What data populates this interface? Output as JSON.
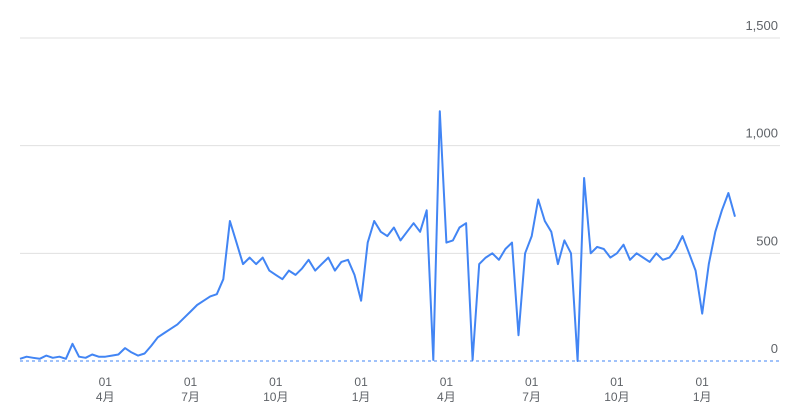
{
  "chart_data": {
    "type": "line",
    "categories": [
      null,
      null,
      null,
      null,
      null,
      null,
      null,
      null,
      null,
      null,
      null,
      null,
      null,
      "01\n4月",
      null,
      null,
      null,
      null,
      null,
      null,
      null,
      null,
      null,
      null,
      null,
      null,
      "01\n7月",
      null,
      null,
      null,
      null,
      null,
      null,
      null,
      null,
      null,
      null,
      null,
      null,
      "01\n10月",
      null,
      null,
      null,
      null,
      null,
      null,
      null,
      null,
      null,
      null,
      null,
      null,
      "01\n1月",
      null,
      null,
      null,
      null,
      null,
      null,
      null,
      null,
      null,
      null,
      null,
      null,
      "01\n4月",
      null,
      null,
      null,
      null,
      null,
      null,
      null,
      null,
      null,
      null,
      null,
      null,
      "01\n7月",
      null,
      null,
      null,
      null,
      null,
      null,
      null,
      null,
      null,
      null,
      null,
      null,
      "01\n10月",
      null,
      null,
      null,
      null,
      null,
      null,
      null,
      null,
      null,
      null,
      null,
      null,
      "01\n1月",
      null,
      null,
      null,
      null,
      null
    ],
    "series": [
      {
        "color": "#4285f4",
        "values": [
          10,
          20,
          15,
          10,
          25,
          15,
          20,
          10,
          80,
          20,
          15,
          30,
          20,
          20,
          25,
          30,
          60,
          40,
          25,
          35,
          70,
          110,
          130,
          150,
          170,
          200,
          230,
          260,
          280,
          300,
          310,
          380,
          650,
          550,
          450,
          480,
          450,
          480,
          420,
          400,
          380,
          420,
          400,
          430,
          470,
          420,
          450,
          480,
          420,
          460,
          470,
          400,
          280,
          550,
          650,
          600,
          580,
          620,
          560,
          600,
          640,
          600,
          700,
          5,
          1160,
          550,
          560,
          620,
          640,
          5,
          450,
          480,
          500,
          470,
          520,
          550,
          120,
          500,
          580,
          750,
          650,
          600,
          450,
          560,
          500,
          0,
          850,
          500,
          530,
          520,
          480,
          500,
          540,
          470,
          500,
          480,
          460,
          500,
          470,
          480,
          520,
          580,
          500,
          420,
          220,
          450,
          600,
          700,
          780,
          670
        ]
      }
    ],
    "ylim": [
      0,
      1500
    ],
    "yticks": [
      0,
      500,
      {
        "value": 1000,
        "label": "1,000"
      },
      {
        "value": 1500,
        "label": "1,500"
      }
    ],
    "grid": true
  }
}
